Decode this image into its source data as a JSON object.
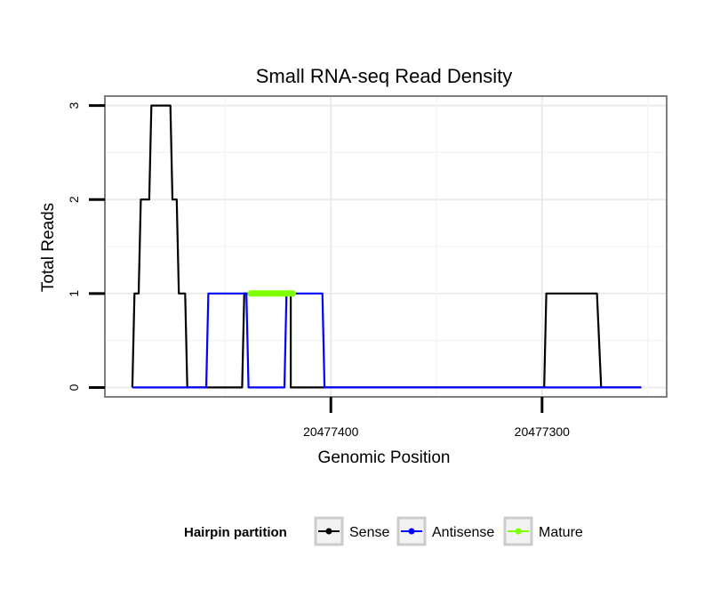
{
  "chart_data": {
    "type": "line",
    "title": "Small RNA-seq Read Density",
    "xlabel": "Genomic Position",
    "ylabel": "Total Reads",
    "x_axis_reversed": true,
    "xlim": [
      20477507,
      20477241
    ],
    "ylim": [
      -0.1,
      3.1
    ],
    "x_ticks": [
      20477400,
      20477300
    ],
    "x_tick_labels": [
      "20477400",
      "20477300"
    ],
    "y_ticks": [
      0,
      1,
      2,
      3
    ],
    "y_tick_labels": [
      "0",
      "1",
      "2",
      "3"
    ],
    "grid": true,
    "legend": {
      "title": "Hairpin partition",
      "position": "bottom",
      "entries": [
        {
          "name": "Sense",
          "color": "#000000"
        },
        {
          "name": "Antisense",
          "color": "#0000ff"
        },
        {
          "name": "Mature",
          "color": "#7fff00"
        }
      ]
    },
    "series": [
      {
        "name": "Sense",
        "color": "#000000",
        "x": [
          20477494,
          20477493,
          20477492,
          20477491,
          20477490,
          20477486,
          20477485,
          20477481,
          20477476,
          20477475,
          20477473,
          20477472,
          20477469,
          20477468,
          20477466,
          20477460,
          20477459,
          20477442,
          20477441,
          20477421,
          20477420,
          20477419,
          20477419,
          20477417,
          20477416,
          20477299,
          20477298,
          20477274,
          20477272,
          20477253
        ],
        "y": [
          0,
          1,
          1,
          1,
          2,
          2,
          3,
          3,
          3,
          2,
          2,
          1,
          1,
          0,
          0,
          0,
          0,
          0,
          1,
          1,
          1,
          1,
          0,
          0,
          0,
          0,
          1,
          1,
          0,
          0
        ]
      },
      {
        "name": "Antisense",
        "color": "#0000ff",
        "x": [
          20477494,
          20477459,
          20477458,
          20477440,
          20477439,
          20477422,
          20477421,
          20477404,
          20477403,
          20477253
        ],
        "y": [
          0,
          0,
          1,
          1,
          0,
          0,
          1,
          1,
          0,
          0
        ]
      },
      {
        "name": "Mature",
        "color": "#7fff00",
        "x": [
          20477438,
          20477418
        ],
        "y": [
          1,
          1
        ]
      }
    ]
  }
}
